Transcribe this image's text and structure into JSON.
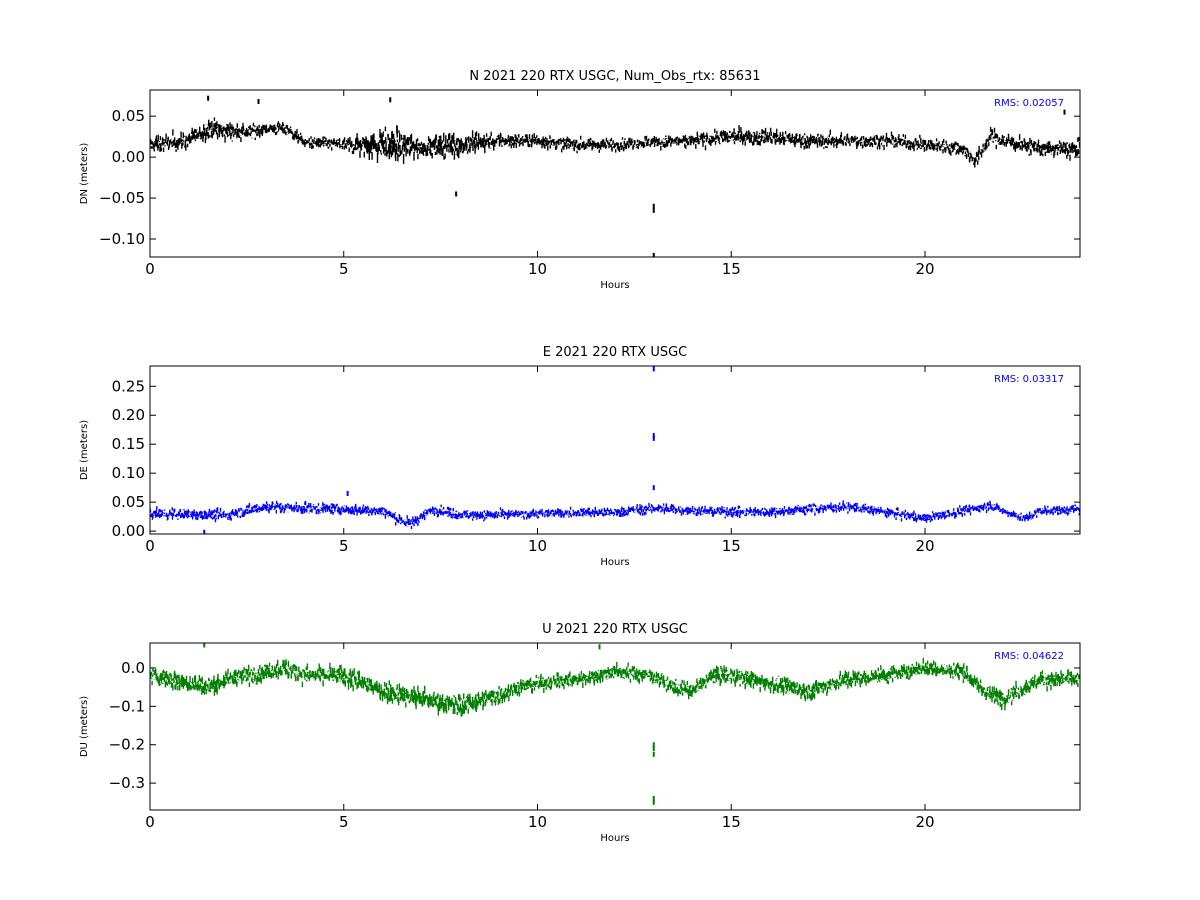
{
  "chart_data": [
    {
      "type": "scatter",
      "title": "N 2021 220 RTX  USGC, Num_Obs_rtx: 85631",
      "xlabel": "Hours",
      "ylabel": "DN (meters)",
      "xlim": [
        0,
        24
      ],
      "ylim": [
        -0.122,
        0.082
      ],
      "xticks": [
        0,
        5,
        10,
        15,
        20
      ],
      "xtick_labels": [
        "0",
        "5",
        "10",
        "15",
        "20"
      ],
      "yticks": [
        0.05,
        0.0,
        -0.05,
        -0.1
      ],
      "ytick_labels": [
        "0.05",
        "0.00",
        "−0.05",
        "−0.10"
      ],
      "color": "#000000",
      "rms_label": "RMS:  0.02057",
      "rms_color": "#0000ff",
      "baseline": [
        [
          0,
          0.015
        ],
        [
          1,
          0.02
        ],
        [
          1.5,
          0.035
        ],
        [
          2.5,
          0.03
        ],
        [
          3,
          0.035
        ],
        [
          3.5,
          0.035
        ],
        [
          4,
          0.018
        ],
        [
          5,
          0.015
        ],
        [
          6,
          0.015
        ],
        [
          7,
          0.012
        ],
        [
          8,
          0.015
        ],
        [
          9,
          0.02
        ],
        [
          10,
          0.02
        ],
        [
          11,
          0.015
        ],
        [
          12,
          0.015
        ],
        [
          13,
          0.018
        ],
        [
          14,
          0.02
        ],
        [
          15,
          0.025
        ],
        [
          16,
          0.025
        ],
        [
          17,
          0.02
        ],
        [
          18,
          0.02
        ],
        [
          19,
          0.02
        ],
        [
          20,
          0.015
        ],
        [
          21,
          0.01
        ],
        [
          21.3,
          -0.005
        ],
        [
          21.7,
          0.025
        ],
        [
          22,
          0.02
        ],
        [
          23,
          0.01
        ],
        [
          24,
          0.01
        ]
      ],
      "spread": [
        [
          0,
          0.012
        ],
        [
          1,
          0.014
        ],
        [
          2,
          0.015
        ],
        [
          3,
          0.01
        ],
        [
          4,
          0.009
        ],
        [
          5,
          0.009
        ],
        [
          5.5,
          0.018
        ],
        [
          6.2,
          0.028
        ],
        [
          7,
          0.015
        ],
        [
          8,
          0.02
        ],
        [
          9,
          0.012
        ],
        [
          10,
          0.01
        ],
        [
          12,
          0.009
        ],
        [
          14,
          0.011
        ],
        [
          16,
          0.012
        ],
        [
          18,
          0.011
        ],
        [
          20,
          0.01
        ],
        [
          22,
          0.012
        ],
        [
          24,
          0.013
        ]
      ],
      "outliers": [
        [
          13,
          -0.06
        ],
        [
          13,
          -0.065
        ],
        [
          13,
          -0.12
        ],
        [
          1.5,
          0.072
        ],
        [
          6.2,
          0.07
        ],
        [
          2.8,
          0.068
        ],
        [
          7.9,
          -0.045
        ],
        [
          23.6,
          0.055
        ]
      ]
    },
    {
      "type": "scatter",
      "title": "E 2021 220 RTX  USGC",
      "xlabel": "Hours",
      "ylabel": "DE (meters)",
      "xlim": [
        0,
        24
      ],
      "ylim": [
        -0.005,
        0.285
      ],
      "xticks": [
        0,
        5,
        10,
        15,
        20
      ],
      "xtick_labels": [
        "0",
        "5",
        "10",
        "15",
        "20"
      ],
      "yticks": [
        0.25,
        0.2,
        0.15,
        0.1,
        0.05,
        0.0
      ],
      "ytick_labels": [
        "0.25",
        "0.20",
        "0.15",
        "0.10",
        "0.05",
        "0.00"
      ],
      "color": "#0000ff",
      "rms_label": "RMS:  0.03317",
      "rms_color": "#0000ff",
      "baseline": [
        [
          0,
          0.03
        ],
        [
          2,
          0.028
        ],
        [
          3,
          0.042
        ],
        [
          4,
          0.04
        ],
        [
          5,
          0.038
        ],
        [
          6,
          0.035
        ],
        [
          6.7,
          0.012
        ],
        [
          7.3,
          0.038
        ],
        [
          8,
          0.028
        ],
        [
          9,
          0.028
        ],
        [
          10,
          0.03
        ],
        [
          11,
          0.032
        ],
        [
          12,
          0.032
        ],
        [
          13,
          0.04
        ],
        [
          14,
          0.035
        ],
        [
          15,
          0.033
        ],
        [
          16,
          0.033
        ],
        [
          17,
          0.038
        ],
        [
          18,
          0.042
        ],
        [
          19,
          0.033
        ],
        [
          20,
          0.022
        ],
        [
          21,
          0.035
        ],
        [
          21.7,
          0.045
        ],
        [
          22,
          0.035
        ],
        [
          22.6,
          0.022
        ],
        [
          23,
          0.035
        ],
        [
          24,
          0.038
        ]
      ],
      "spread": [
        [
          0,
          0.012
        ],
        [
          5,
          0.012
        ],
        [
          10,
          0.01
        ],
        [
          15,
          0.011
        ],
        [
          20,
          0.01
        ],
        [
          24,
          0.011
        ]
      ],
      "outliers": [
        [
          13,
          0.28
        ],
        [
          13,
          0.165
        ],
        [
          13,
          0.16
        ],
        [
          13,
          0.075
        ],
        [
          1.4,
          -0.002
        ],
        [
          5.1,
          0.065
        ]
      ]
    },
    {
      "type": "scatter",
      "title": "U 2021 220 RTX  USGC",
      "xlabel": "Hours",
      "ylabel": "DU (meters)",
      "xlim": [
        0,
        24
      ],
      "ylim": [
        -0.37,
        0.065
      ],
      "xticks": [
        0,
        5,
        10,
        15,
        20
      ],
      "xtick_labels": [
        "0",
        "5",
        "10",
        "15",
        "20"
      ],
      "yticks": [
        0.0,
        -0.1,
        -0.2,
        -0.3
      ],
      "ytick_labels": [
        "0.0",
        "−0.1",
        "−0.2",
        "−0.3"
      ],
      "color": "#007f00",
      "rms_label": "RMS:  0.04622",
      "rms_color": "#0000ff",
      "baseline": [
        [
          0,
          -0.02
        ],
        [
          1,
          -0.04
        ],
        [
          1.5,
          -0.05
        ],
        [
          2,
          -0.03
        ],
        [
          3,
          -0.01
        ],
        [
          3.5,
          0.0
        ],
        [
          4,
          -0.02
        ],
        [
          5,
          -0.02
        ],
        [
          5.5,
          -0.04
        ],
        [
          6,
          -0.06
        ],
        [
          7,
          -0.08
        ],
        [
          8,
          -0.1
        ],
        [
          9,
          -0.07
        ],
        [
          9.5,
          -0.05
        ],
        [
          10,
          -0.04
        ],
        [
          11,
          -0.03
        ],
        [
          12,
          -0.01
        ],
        [
          13,
          -0.02
        ],
        [
          13.5,
          -0.05
        ],
        [
          14,
          -0.06
        ],
        [
          14.5,
          -0.02
        ],
        [
          15,
          -0.02
        ],
        [
          16,
          -0.04
        ],
        [
          17,
          -0.06
        ],
        [
          18,
          -0.03
        ],
        [
          19,
          -0.02
        ],
        [
          20,
          0.0
        ],
        [
          21,
          -0.01
        ],
        [
          21.5,
          -0.06
        ],
        [
          22,
          -0.08
        ],
        [
          23,
          -0.03
        ],
        [
          24,
          -0.03
        ]
      ],
      "spread": [
        [
          0,
          0.028
        ],
        [
          2,
          0.03
        ],
        [
          4,
          0.028
        ],
        [
          6,
          0.035
        ],
        [
          8,
          0.035
        ],
        [
          10,
          0.025
        ],
        [
          12,
          0.025
        ],
        [
          14,
          0.025
        ],
        [
          16,
          0.028
        ],
        [
          18,
          0.028
        ],
        [
          20,
          0.025
        ],
        [
          22,
          0.03
        ],
        [
          24,
          0.028
        ]
      ],
      "outliers": [
        [
          13,
          -0.2
        ],
        [
          13,
          -0.21
        ],
        [
          13,
          -0.225
        ],
        [
          13,
          -0.34
        ],
        [
          13,
          -0.35
        ],
        [
          1.4,
          0.06
        ],
        [
          11.6,
          0.055
        ]
      ]
    }
  ]
}
